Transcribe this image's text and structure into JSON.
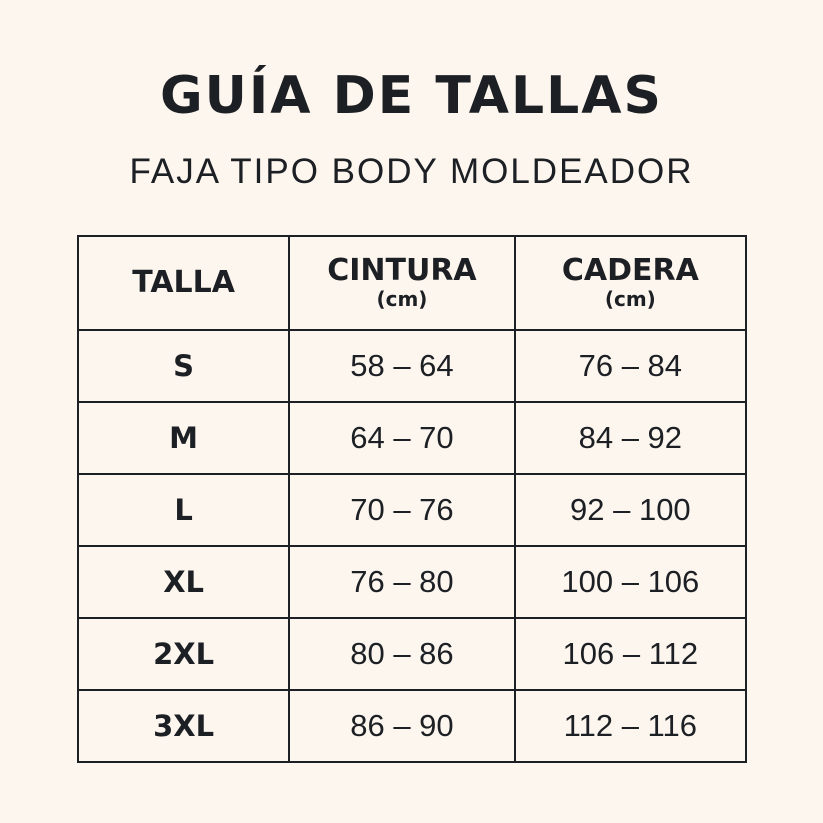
{
  "title": "GUÍA DE TALLAS",
  "subtitle": "FAJA TIPO BODY MOLDEADOR",
  "table": {
    "headers": [
      {
        "label": "TALLA",
        "unit": ""
      },
      {
        "label": "CINTURA",
        "unit": "(cm)"
      },
      {
        "label": "CADERA",
        "unit": "(cm)"
      }
    ],
    "rows": [
      {
        "size": "S",
        "waist": "58 – 64",
        "hip": "76 – 84"
      },
      {
        "size": "M",
        "waist": "64 – 70",
        "hip": "84 – 92"
      },
      {
        "size": "L",
        "waist": "70 – 76",
        "hip": "92 – 100"
      },
      {
        "size": "XL",
        "waist": "76 – 80",
        "hip": "100 – 106"
      },
      {
        "size": "2XL",
        "waist": "80 – 86",
        "hip": "106 – 112"
      },
      {
        "size": "3XL",
        "waist": "86 – 90",
        "hip": "112 – 116"
      }
    ]
  }
}
